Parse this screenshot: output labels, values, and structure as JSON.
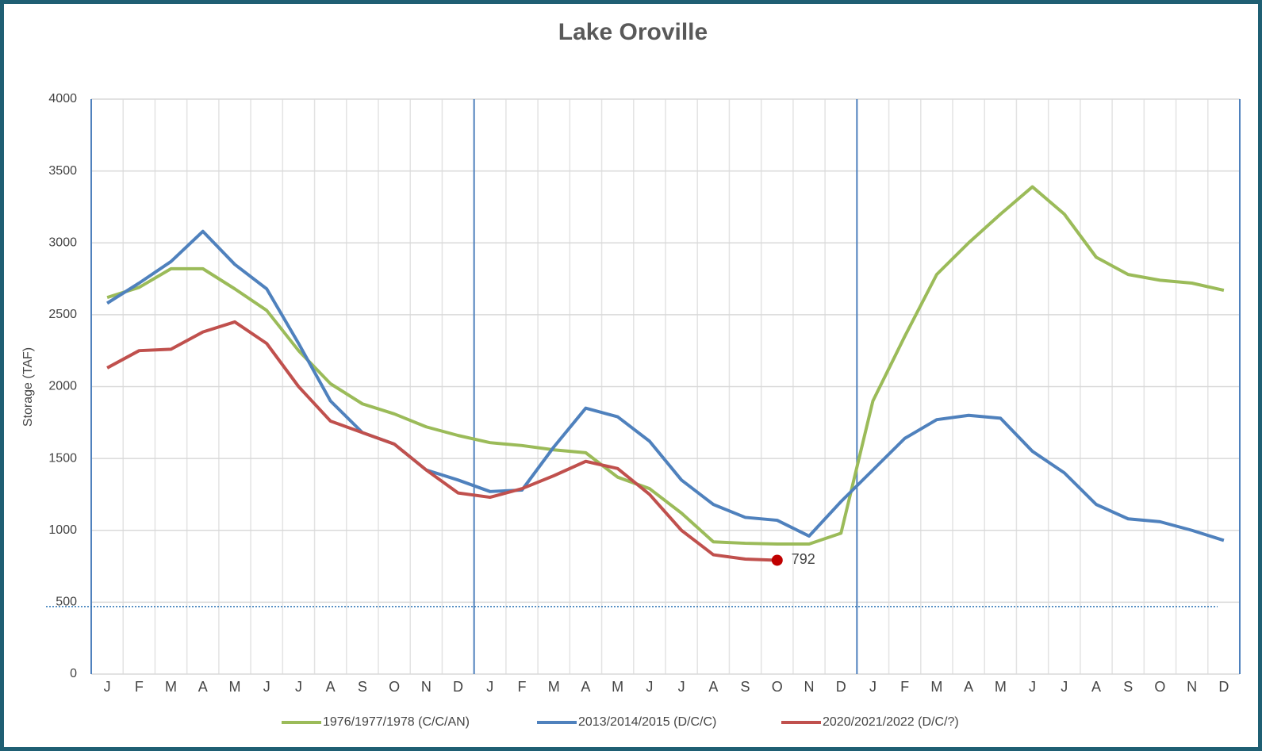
{
  "chart_data": {
    "type": "line",
    "title": "Lake Oroville",
    "y_label": "Storage (TAF)",
    "categories": [
      "J",
      "F",
      "M",
      "A",
      "M",
      "J",
      "J",
      "A",
      "S",
      "O",
      "N",
      "D",
      "J",
      "F",
      "M",
      "A",
      "M",
      "J",
      "J",
      "A",
      "S",
      "O",
      "N",
      "D",
      "J",
      "F",
      "M",
      "A",
      "M",
      "J",
      "J",
      "A",
      "S",
      "O",
      "N",
      "D"
    ],
    "series": [
      {
        "name": "1976/1977/1978 (C/C/AN)",
        "color": "#9bbb59",
        "values": [
          2620,
          2690,
          2820,
          2820,
          2680,
          2530,
          2250,
          2020,
          1880,
          1810,
          1720,
          1660,
          1610,
          1590,
          1560,
          1540,
          1370,
          1290,
          1120,
          920,
          910,
          905,
          905,
          980,
          1900,
          2350,
          2780,
          3000,
          3200,
          3390,
          3200,
          2900,
          2780,
          2740,
          2720,
          2670
        ]
      },
      {
        "name": "2013/2014/2015 (D/C/C)",
        "color": "#4f81bd",
        "values": [
          2580,
          2720,
          2870,
          3080,
          2850,
          2680,
          2300,
          1900,
          1680,
          1600,
          1420,
          1350,
          1270,
          1280,
          1580,
          1850,
          1790,
          1620,
          1350,
          1180,
          1090,
          1070,
          960,
          1200,
          1420,
          1640,
          1770,
          1800,
          1780,
          1550,
          1400,
          1180,
          1080,
          1060,
          1000,
          930
        ]
      },
      {
        "name": "2020/2021/2022 (D/C/?)",
        "color": "#c0504d",
        "end_marker": true,
        "values": [
          2130,
          2250,
          2260,
          2380,
          2450,
          2300,
          2000,
          1760,
          1680,
          1600,
          1420,
          1260,
          1230,
          1290,
          1380,
          1480,
          1430,
          1250,
          1000,
          830,
          800,
          792,
          null,
          null,
          null,
          null,
          null,
          null,
          null,
          null,
          null,
          null,
          null,
          null,
          null,
          null
        ]
      }
    ],
    "ylim": [
      0,
      4000
    ],
    "yticks": [
      0,
      500,
      1000,
      1500,
      2000,
      2500,
      3000,
      3500,
      4000
    ],
    "grid": true,
    "reference_line": 470,
    "reference_color": "#2e75b6",
    "year_dividers_every": 12,
    "legend": "bottom"
  }
}
